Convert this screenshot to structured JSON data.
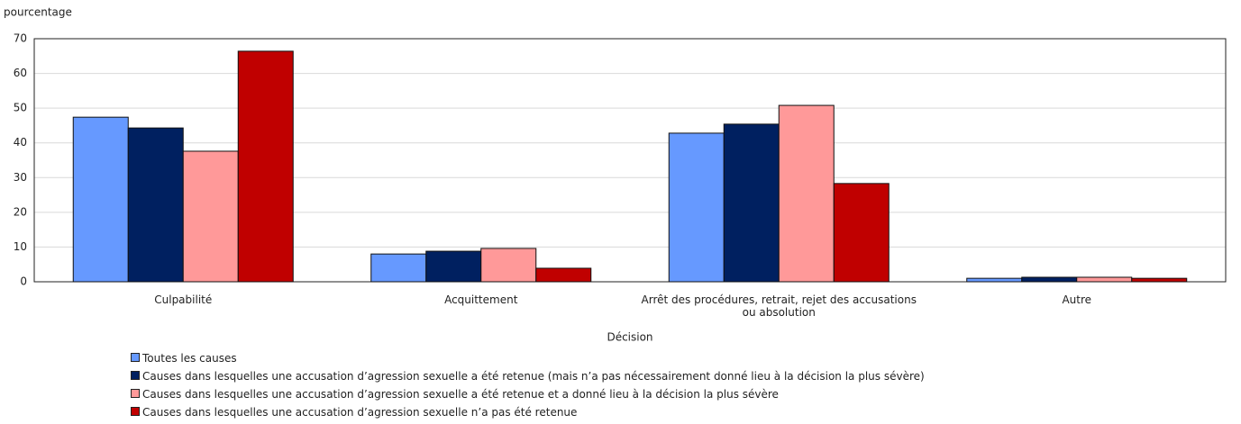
{
  "chart_data": {
    "type": "bar",
    "y_axis_label": "pourcentage",
    "x_axis_label": "Décision",
    "categories": [
      "Culpabilité",
      "Acquittement",
      "Arrêt des procédures, retrait, rejet des accusations ou absolution",
      "Autre"
    ],
    "series": [
      {
        "name": "Toutes les causes",
        "color": "#6699ff",
        "values": [
          47.4,
          8.0,
          42.8,
          1.0
        ]
      },
      {
        "name": "Causes dans lesquelles une accusation d’agression sexuelle a été retenue (mais n’a pas nécessairement donné lieu à la décision la plus sévère)",
        "color": "#002060",
        "values": [
          44.3,
          8.8,
          45.4,
          1.3
        ]
      },
      {
        "name": "Causes dans lesquelles une accusation d’agression sexuelle a été retenue et a donné lieu à la décision la plus sévère",
        "color": "#ff9999",
        "values": [
          37.6,
          9.6,
          50.8,
          1.3
        ]
      },
      {
        "name": "Causes dans lesquelles une accusation d’agression sexuelle n’a pas été retenue",
        "color": "#c00000",
        "values": [
          66.4,
          3.9,
          28.3,
          1.0
        ]
      }
    ],
    "ylim": [
      0,
      70
    ],
    "yticks": [
      0,
      10,
      20,
      30,
      40,
      50,
      60,
      70
    ],
    "grid": true,
    "legend": "bottom"
  }
}
